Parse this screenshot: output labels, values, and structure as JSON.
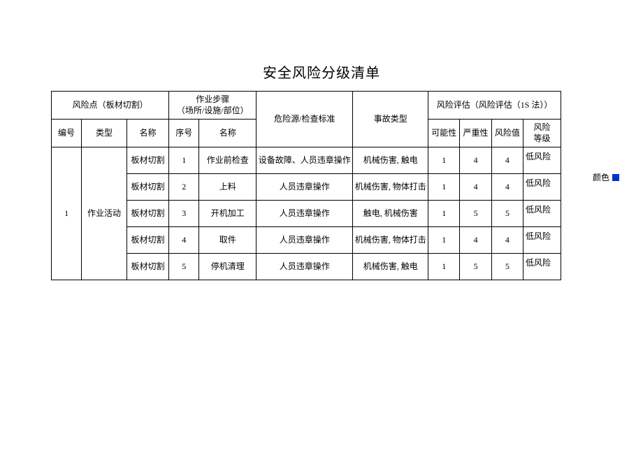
{
  "title": "安全风险分级清单",
  "headers": {
    "risk_point": "风险点（板材切割）",
    "work_steps": "作业步骤\n（场所/设施/部位）",
    "hazard": "危险源/检查标准",
    "accident_type": "事故类型",
    "risk_eval": "风险评估（风险评估（1S 法））",
    "number": "编号",
    "type": "类型",
    "name": "名称",
    "seq": "序号",
    "step_name": "名称",
    "possibility": "可能性",
    "severity": "严重性",
    "risk_value": "风险值",
    "risk_level": "风险\n等级"
  },
  "group": {
    "number": "1",
    "type": "作业活动"
  },
  "rows": [
    {
      "name": "板材切割",
      "seq": "1",
      "step_name": "作业前检查",
      "hazard": "设备故障、人员违章操作",
      "accident": "机械伤害, 触电",
      "possibility": "1",
      "severity": "4",
      "risk_value": "4",
      "risk_level": "低风险"
    },
    {
      "name": "板材切割",
      "seq": "2",
      "step_name": "上料",
      "hazard": "人员违章操作",
      "accident": "机械伤害, 物体打击",
      "possibility": "1",
      "severity": "4",
      "risk_value": "4",
      "risk_level": "低风险"
    },
    {
      "name": "板材切割",
      "seq": "3",
      "step_name": "开机加工",
      "hazard": "人员违章操作",
      "accident": "触电, 机械伤害",
      "possibility": "1",
      "severity": "5",
      "risk_value": "5",
      "risk_level": "低风险"
    },
    {
      "name": "板材切割",
      "seq": "4",
      "step_name": "取件",
      "hazard": "人员违章操作",
      "accident": "机械伤害, 物体打击",
      "possibility": "1",
      "severity": "4",
      "risk_value": "4",
      "risk_level": "低风险"
    },
    {
      "name": "板材切割",
      "seq": "5",
      "step_name": "停机清理",
      "hazard": "人员违章操作",
      "accident": "机械伤害, 触电",
      "possibility": "1",
      "severity": "5",
      "risk_value": "5",
      "risk_level": "低风险"
    }
  ],
  "color_label": "颜色",
  "color_swatch": "#0033cc"
}
